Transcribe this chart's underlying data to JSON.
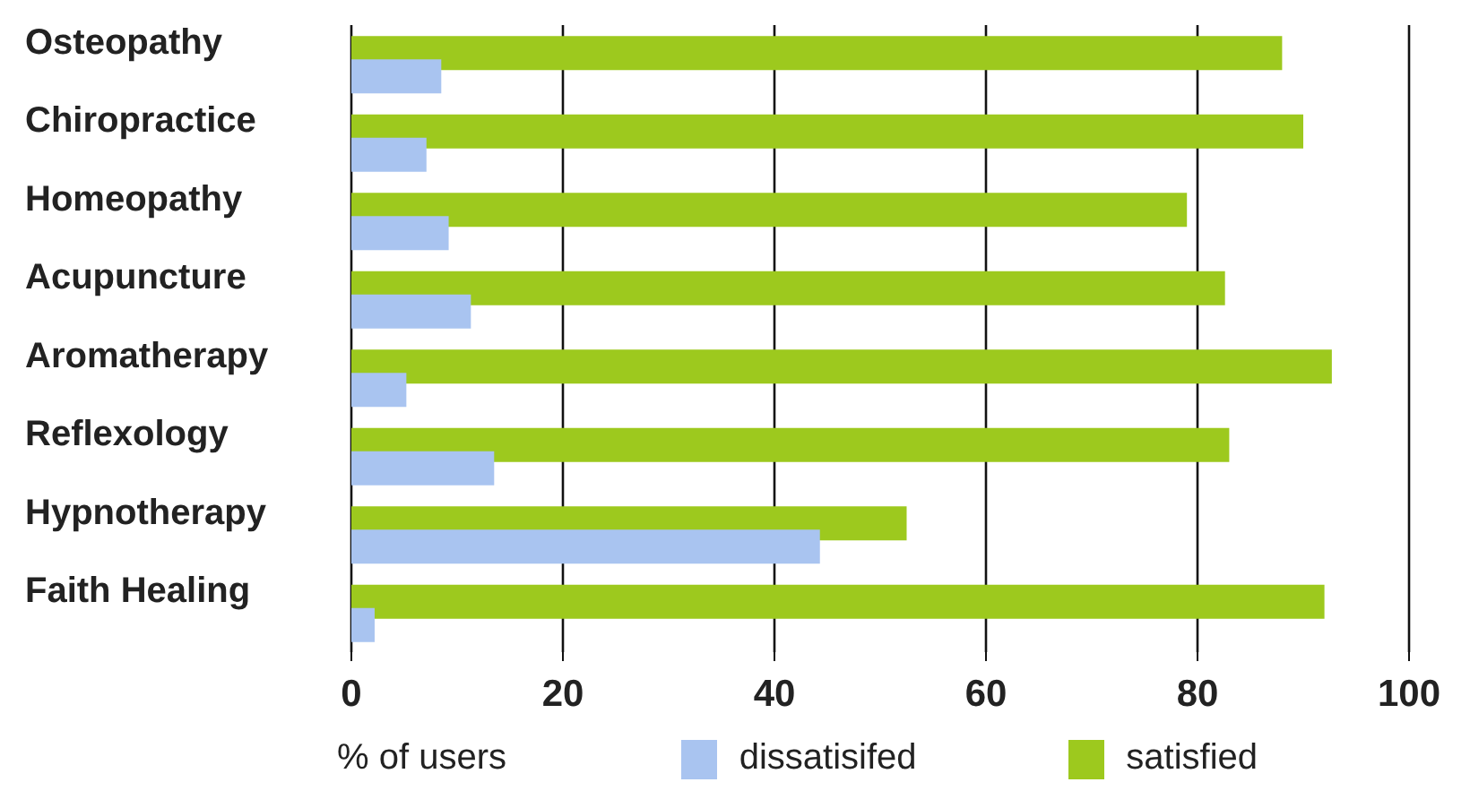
{
  "chart_data": {
    "type": "bar",
    "orientation": "horizontal",
    "xlabel": "% of users",
    "categories": [
      "Osteopathy",
      "Chiropractice",
      "Homeopathy",
      "Acupuncture",
      "Aromatherapy",
      "Reflexology",
      "Hypnotherapy",
      "Faith Healing"
    ],
    "series": [
      {
        "name": "dissatisifed",
        "color": "#a9c4f0",
        "values": [
          8.5,
          7.1,
          9.2,
          11.3,
          5.2,
          13.5,
          44.3,
          2.2
        ]
      },
      {
        "name": "satisfied",
        "color": "#9dc91e",
        "values": [
          88,
          90,
          79,
          82.6,
          92.7,
          83,
          52.5,
          92
        ]
      }
    ],
    "xlim": [
      0,
      100
    ],
    "xticks": [
      0,
      20,
      40,
      60,
      80,
      100
    ],
    "grid": "x",
    "legend": "bottom"
  }
}
